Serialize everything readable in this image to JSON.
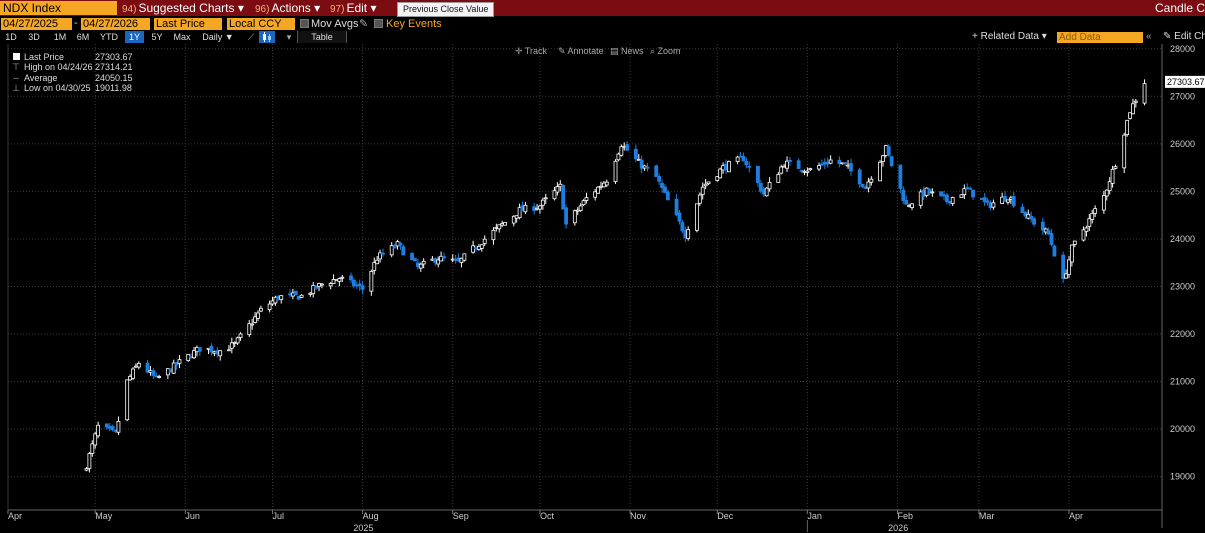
{
  "topbar": {
    "ticker": "NDX Index",
    "menus": [
      {
        "num": "94)",
        "label": "Suggested Charts ▾"
      },
      {
        "num": "96)",
        "label": "Actions ▾"
      },
      {
        "num": "97)",
        "label": "Edit ▾"
      }
    ],
    "tooltip": "Previous Close Value",
    "right_label": "Candle Chart"
  },
  "row2": {
    "start_date": "04/27/2025",
    "dash": "-",
    "end_date": "04/27/2026",
    "price_field": "Last Price",
    "currency": "Local CCY",
    "mov_avgs": "Mov Avgs",
    "key_events": "Key Events"
  },
  "row3": {
    "ranges": [
      "1D",
      "3D",
      "1M",
      "6M",
      "YTD",
      "1Y",
      "5Y",
      "Max"
    ],
    "selected_range": "1Y",
    "period": "Daily ▼",
    "table": "Table",
    "related": "+ Related Data ▾",
    "add_data": "Add Data",
    "edit_chart": "Edit Chart"
  },
  "tools": [
    {
      "icon": "crosshair-icon",
      "label": "Track"
    },
    {
      "icon": "pencil-icon",
      "label": "Annotate"
    },
    {
      "icon": "news-icon",
      "label": "News"
    },
    {
      "icon": "magnifier-icon",
      "label": "Zoom"
    }
  ],
  "legend": [
    {
      "name": "Last Price",
      "value": "27303.67"
    },
    {
      "name": "High on 04/24/26",
      "value": "27314.21"
    },
    {
      "name": "Average",
      "value": "24050.15"
    },
    {
      "name": "Low on 04/30/25",
      "value": "19011.98"
    }
  ],
  "colors": {
    "up_candle": "#ffffff",
    "down_candle": "#1e7fe0",
    "grid": "#3a3a3a",
    "accent": "#f5a623",
    "topbar": "#7a0c12"
  },
  "chart_data": {
    "type": "candlestick",
    "title": "",
    "ylim": [
      18300,
      28100
    ],
    "ytick_labels": [
      "19000",
      "20000",
      "21000",
      "22000",
      "23000",
      "24000",
      "25000",
      "26000",
      "27000",
      "28000"
    ],
    "ytick_values": [
      19000,
      20000,
      21000,
      22000,
      23000,
      24000,
      25000,
      26000,
      27000,
      28000
    ],
    "y_axis_position": "right",
    "x_range": [
      "2025-04-01",
      "2026-05-03"
    ],
    "month_labels": [
      {
        "label": "Apr",
        "date": "2025-04-01"
      },
      {
        "label": "May",
        "date": "2025-05-01"
      },
      {
        "label": "Jun",
        "date": "2025-06-01"
      },
      {
        "label": "Jul",
        "date": "2025-07-01"
      },
      {
        "label": "Aug",
        "date": "2025-08-01"
      },
      {
        "label": "Sep",
        "date": "2025-09-01"
      },
      {
        "label": "Oct",
        "date": "2025-10-01"
      },
      {
        "label": "Nov",
        "date": "2025-11-01"
      },
      {
        "label": "Dec",
        "date": "2025-12-01"
      },
      {
        "label": "Jan",
        "date": "2026-01-01"
      },
      {
        "label": "Feb",
        "date": "2026-02-01"
      },
      {
        "label": "Mar",
        "date": "2026-03-01"
      },
      {
        "label": "Apr",
        "date": "2026-04-01"
      }
    ],
    "year_labels": [
      {
        "label": "2025",
        "date": "2025-08-15"
      },
      {
        "label": "2026",
        "date": "2026-02-15"
      }
    ],
    "last_value_label": "27303.67",
    "last_value": 27303.67,
    "grid": true,
    "close_anchors": [
      [
        "2025-04-28",
        19250
      ],
      [
        "2025-05-02",
        20050
      ],
      [
        "2025-05-08",
        19900
      ],
      [
        "2025-05-12",
        21000
      ],
      [
        "2025-05-16",
        21400
      ],
      [
        "2025-05-22",
        21050
      ],
      [
        "2025-05-30",
        21400
      ],
      [
        "2025-06-06",
        21700
      ],
      [
        "2025-06-13",
        21650
      ],
      [
        "2025-06-18",
        21780
      ],
      [
        "2025-06-27",
        22500
      ],
      [
        "2025-07-03",
        22780
      ],
      [
        "2025-07-11",
        22800
      ],
      [
        "2025-07-18",
        23050
      ],
      [
        "2025-07-24",
        23180
      ],
      [
        "2025-08-01",
        22950
      ],
      [
        "2025-08-06",
        23600
      ],
      [
        "2025-08-13",
        23880
      ],
      [
        "2025-08-20",
        23400
      ],
      [
        "2025-08-27",
        23600
      ],
      [
        "2025-09-03",
        23500
      ],
      [
        "2025-09-10",
        23900
      ],
      [
        "2025-09-17",
        24250
      ],
      [
        "2025-09-24",
        24600
      ],
      [
        "2025-10-01",
        24700
      ],
      [
        "2025-10-08",
        25100
      ],
      [
        "2025-10-10",
        24300
      ],
      [
        "2025-10-17",
        24850
      ],
      [
        "2025-10-24",
        25250
      ],
      [
        "2025-10-29",
        26000
      ],
      [
        "2025-11-04",
        25600
      ],
      [
        "2025-11-10",
        25300
      ],
      [
        "2025-11-14",
        24800
      ],
      [
        "2025-11-20",
        24100
      ],
      [
        "2025-11-26",
        25100
      ],
      [
        "2025-12-03",
        25500
      ],
      [
        "2025-12-10",
        25700
      ],
      [
        "2025-12-17",
        24950
      ],
      [
        "2025-12-24",
        25600
      ],
      [
        "2026-01-02",
        25450
      ],
      [
        "2026-01-09",
        25650
      ],
      [
        "2026-01-14",
        25550
      ],
      [
        "2026-01-21",
        25100
      ],
      [
        "2026-01-28",
        25900
      ],
      [
        "2026-02-04",
        24700
      ],
      [
        "2026-02-11",
        25000
      ],
      [
        "2026-02-18",
        24800
      ],
      [
        "2026-02-25",
        25050
      ],
      [
        "2026-03-04",
        24700
      ],
      [
        "2026-03-11",
        24900
      ],
      [
        "2026-03-18",
        24450
      ],
      [
        "2026-03-25",
        24100
      ],
      [
        "2026-03-30",
        23100
      ],
      [
        "2026-04-02",
        23800
      ],
      [
        "2026-04-08",
        24400
      ],
      [
        "2026-04-13",
        24900
      ],
      [
        "2026-04-17",
        25600
      ],
      [
        "2026-04-22",
        26700
      ],
      [
        "2026-04-27",
        27303
      ]
    ]
  }
}
